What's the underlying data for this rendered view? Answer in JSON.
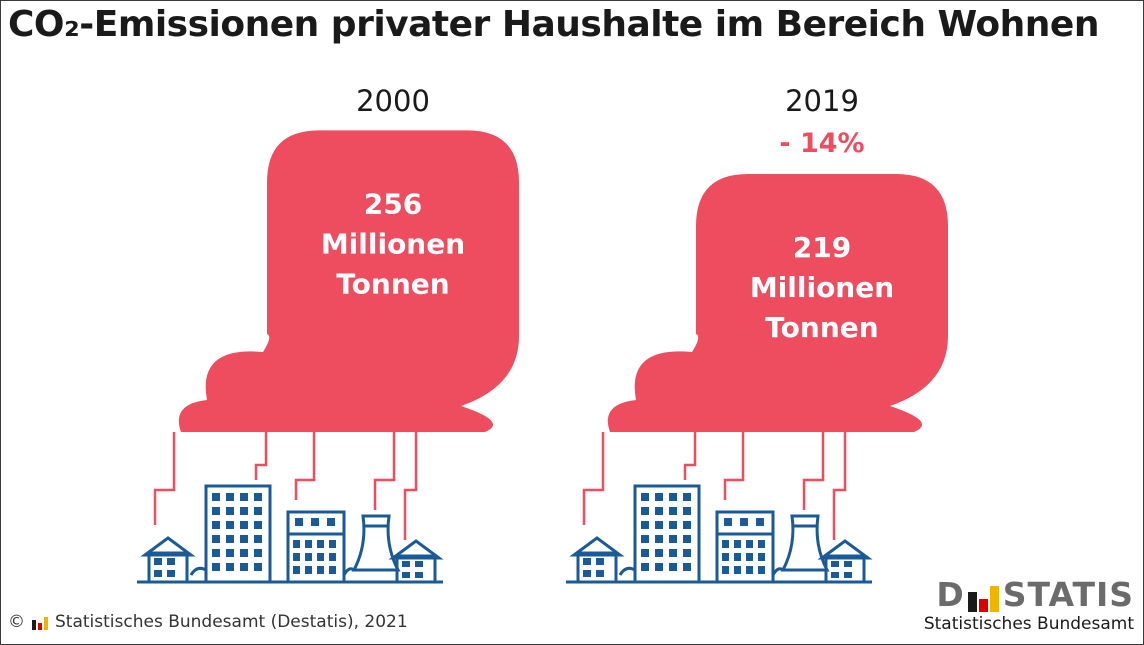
{
  "title": "CO₂-Emissionen privater Haushalte im Bereich Wohnen",
  "colors": {
    "cloud": "#ee4d5f",
    "buildings": "#1a5a96",
    "change": "#ee4d5f",
    "logo_black": "#1a1a1a",
    "logo_red": "#dd0000",
    "logo_gold": "#f0b400"
  },
  "chart_data": {
    "type": "bar",
    "categories": [
      "2000",
      "2019"
    ],
    "values": [
      256,
      219
    ],
    "unit_lines": [
      "Millionen",
      "Tonnen"
    ],
    "change_label": "- 14%",
    "title": "CO₂-Emissionen privater Haushalte im Bereich Wohnen"
  },
  "footer": {
    "copyright": "©",
    "source": "Statistisches Bundesamt (Destatis), 2021",
    "icon": "destatis-bars-icon"
  },
  "logo": {
    "word_left": "D",
    "word_right": "STATIS",
    "subtitle": "Statistisches Bundesamt"
  }
}
